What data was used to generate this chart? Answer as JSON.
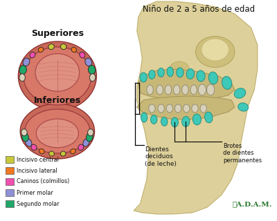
{
  "bg_color": "#ffffff",
  "left_title_superior": "Superiores",
  "left_title_inferior": "Inferiores",
  "right_title": "Niño de 2 a 5 años de edad",
  "legend_items": [
    {
      "label": "Incisivo central",
      "color": "#c8c83a"
    },
    {
      "label": "Incisivo lateral",
      "color": "#f07820"
    },
    {
      "label": "Caninos (colmillos)",
      "color": "#f050b0"
    },
    {
      "label": "Primer molar",
      "color": "#9090d8"
    },
    {
      "label": "Segundo molar",
      "color": "#20a868"
    }
  ],
  "label_dientes_deciduos": "Dientes\ndeciduos\n(de leche)",
  "label_brotes": "Brotes\nde dientes\npermanentes",
  "adam_text": "A.D.A.M.",
  "font_color": "#111111",
  "teal": "#3dc8b8",
  "col_white_tooth": "#d8d0b8",
  "palate_outer": "#c86858",
  "palate_mid": "#d87868",
  "palate_inner": "#e09080",
  "skull_color": "#d8c888",
  "skull_edge": "#b8a860"
}
